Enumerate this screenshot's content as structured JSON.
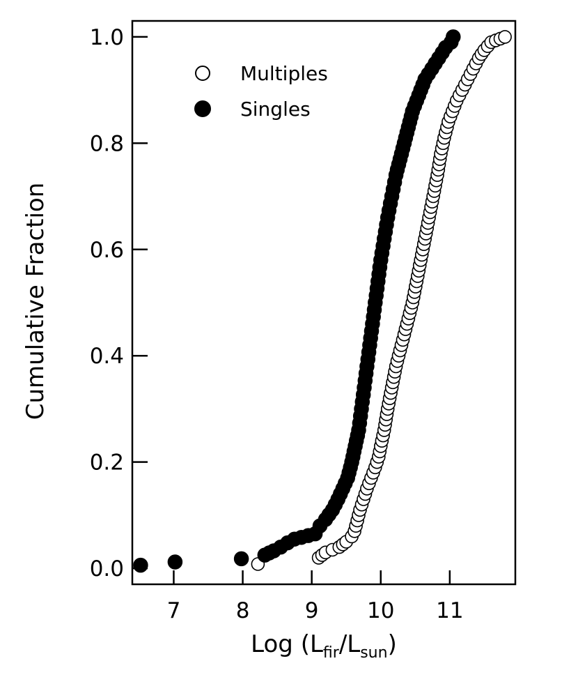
{
  "chart_data": {
    "type": "scatter",
    "title": "",
    "xlabel": {
      "main": "Log (L",
      "sub1": "fir",
      "mid": "/L",
      "sub2": "sun",
      "end": ")"
    },
    "ylabel": "Cumulative Fraction",
    "xlim": [
      6.4,
      11.95
    ],
    "ylim": [
      -0.03,
      1.03
    ],
    "x_ticks": [
      7,
      8,
      9,
      10,
      11
    ],
    "x_tick_labels": [
      "7",
      "8",
      "9",
      "10",
      "11"
    ],
    "y_ticks": [
      0.0,
      0.2,
      0.4,
      0.6,
      0.8,
      1.0
    ],
    "y_tick_labels": [
      "0.0",
      "0.2",
      "0.4",
      "0.6",
      "0.8",
      "1.0"
    ],
    "grid": false,
    "legend_position": "top-left",
    "series": [
      {
        "name": "Multiples",
        "marker": "open-circle",
        "color": "#000000",
        "points": [
          [
            8.22,
            0.008
          ],
          [
            9.1,
            0.02
          ],
          [
            9.2,
            0.03
          ],
          [
            9.3,
            0.035
          ],
          [
            9.4,
            0.04
          ],
          [
            9.5,
            0.05
          ],
          [
            9.58,
            0.06
          ],
          [
            9.62,
            0.07
          ],
          [
            9.66,
            0.09
          ],
          [
            9.7,
            0.11
          ],
          [
            9.75,
            0.13
          ],
          [
            9.8,
            0.15
          ],
          [
            9.86,
            0.17
          ],
          [
            9.92,
            0.19
          ],
          [
            9.97,
            0.21
          ],
          [
            10.0,
            0.23
          ],
          [
            10.05,
            0.26
          ],
          [
            10.1,
            0.3
          ],
          [
            10.16,
            0.34
          ],
          [
            10.22,
            0.38
          ],
          [
            10.28,
            0.41
          ],
          [
            10.34,
            0.44
          ],
          [
            10.4,
            0.47
          ],
          [
            10.46,
            0.5
          ],
          [
            10.52,
            0.54
          ],
          [
            10.58,
            0.58
          ],
          [
            10.64,
            0.62
          ],
          [
            10.7,
            0.66
          ],
          [
            10.76,
            0.7
          ],
          [
            10.82,
            0.74
          ],
          [
            10.87,
            0.78
          ],
          [
            10.92,
            0.81
          ],
          [
            10.98,
            0.84
          ],
          [
            11.04,
            0.86
          ],
          [
            11.1,
            0.88
          ],
          [
            11.18,
            0.9
          ],
          [
            11.26,
            0.92
          ],
          [
            11.34,
            0.94
          ],
          [
            11.42,
            0.96
          ],
          [
            11.5,
            0.975
          ],
          [
            11.6,
            0.99
          ],
          [
            11.8,
            1.0
          ]
        ]
      },
      {
        "name": "Singles",
        "marker": "filled-circle",
        "color": "#000000",
        "points": [
          [
            6.52,
            0.006
          ],
          [
            7.02,
            0.012
          ],
          [
            7.98,
            0.018
          ],
          [
            8.32,
            0.025
          ],
          [
            8.45,
            0.033
          ],
          [
            8.55,
            0.04
          ],
          [
            8.65,
            0.048
          ],
          [
            8.75,
            0.055
          ],
          [
            9.05,
            0.065
          ],
          [
            9.12,
            0.08
          ],
          [
            9.2,
            0.092
          ],
          [
            9.3,
            0.11
          ],
          [
            9.38,
            0.13
          ],
          [
            9.45,
            0.15
          ],
          [
            9.52,
            0.17
          ],
          [
            9.58,
            0.2
          ],
          [
            9.63,
            0.23
          ],
          [
            9.68,
            0.26
          ],
          [
            9.72,
            0.3
          ],
          [
            9.76,
            0.34
          ],
          [
            9.8,
            0.38
          ],
          [
            9.84,
            0.42
          ],
          [
            9.88,
            0.46
          ],
          [
            9.92,
            0.5
          ],
          [
            9.96,
            0.54
          ],
          [
            10.0,
            0.58
          ],
          [
            10.05,
            0.62
          ],
          [
            10.1,
            0.66
          ],
          [
            10.16,
            0.7
          ],
          [
            10.22,
            0.74
          ],
          [
            10.3,
            0.78
          ],
          [
            10.38,
            0.82
          ],
          [
            10.46,
            0.86
          ],
          [
            10.55,
            0.89
          ],
          [
            10.64,
            0.92
          ],
          [
            10.74,
            0.94
          ],
          [
            10.84,
            0.96
          ],
          [
            10.94,
            0.98
          ],
          [
            11.02,
            0.99
          ],
          [
            11.05,
            1.0
          ]
        ]
      }
    ]
  }
}
